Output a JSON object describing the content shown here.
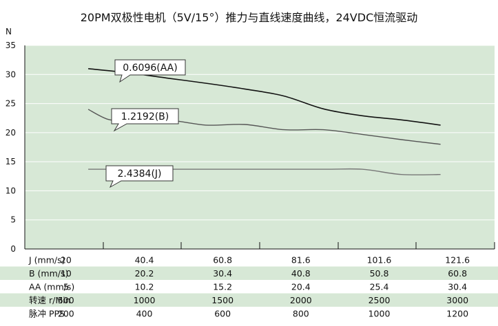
{
  "chart_data": {
    "type": "line",
    "title": "20PM双极性电机（5V/15°）推力与直线速度曲线，24VDC恒流驱动",
    "ylabel": "N",
    "ylim": [
      0,
      35
    ],
    "yticks": [
      0,
      5,
      10,
      15,
      20,
      25,
      30,
      35
    ],
    "x_count": 6,
    "grid": "horizontal",
    "background_color": "#d7e8d6",
    "series": [
      {
        "name": "0.6096(AA)",
        "color": "#111111",
        "x": [
          0,
          0.5,
          1,
          1.5,
          2,
          2.5,
          3,
          3.5,
          4,
          4.5
        ],
        "values": [
          31.0,
          30.3,
          29.4,
          28.5,
          27.5,
          26.3,
          24.1,
          22.9,
          22.2,
          21.3
        ]
      },
      {
        "name": "1.2192(B)",
        "color": "#555555",
        "x": [
          0,
          0.25,
          0.5,
          1,
          1.5,
          2,
          2.5,
          3,
          3.5,
          4,
          4.5
        ],
        "values": [
          24.0,
          22.3,
          22.1,
          22.2,
          21.3,
          21.4,
          20.5,
          20.5,
          19.7,
          18.8,
          18.0
        ]
      },
      {
        "name": "2.4384(J)",
        "color": "#777777",
        "x": [
          0,
          1,
          2,
          3,
          3.5,
          4,
          4.5
        ],
        "values": [
          13.7,
          13.7,
          13.7,
          13.7,
          13.7,
          12.8,
          12.8
        ]
      }
    ],
    "table": {
      "rows": [
        {
          "label": "J (mm/s)",
          "shaded": false,
          "values": [
            "20",
            "40.4",
            "60.8",
            "81.6",
            "101.6",
            "121.6"
          ]
        },
        {
          "label": "B (mm/s)",
          "shaded": true,
          "values": [
            "10",
            "20.2",
            "30.4",
            "40.8",
            "50.8",
            "60.8"
          ]
        },
        {
          "label": "AA (mm/s)",
          "shaded": false,
          "values": [
            "5",
            "10.2",
            "15.2",
            "20.4",
            "25.4",
            "30.4"
          ]
        },
        {
          "label": "转速 r/Min",
          "shaded": true,
          "values": [
            "500",
            "1000",
            "1500",
            "2000",
            "2500",
            "3000"
          ]
        },
        {
          "label": "脉冲 PPS",
          "shaded": false,
          "values": [
            "200",
            "400",
            "600",
            "800",
            "1000",
            "1200"
          ]
        }
      ]
    }
  }
}
